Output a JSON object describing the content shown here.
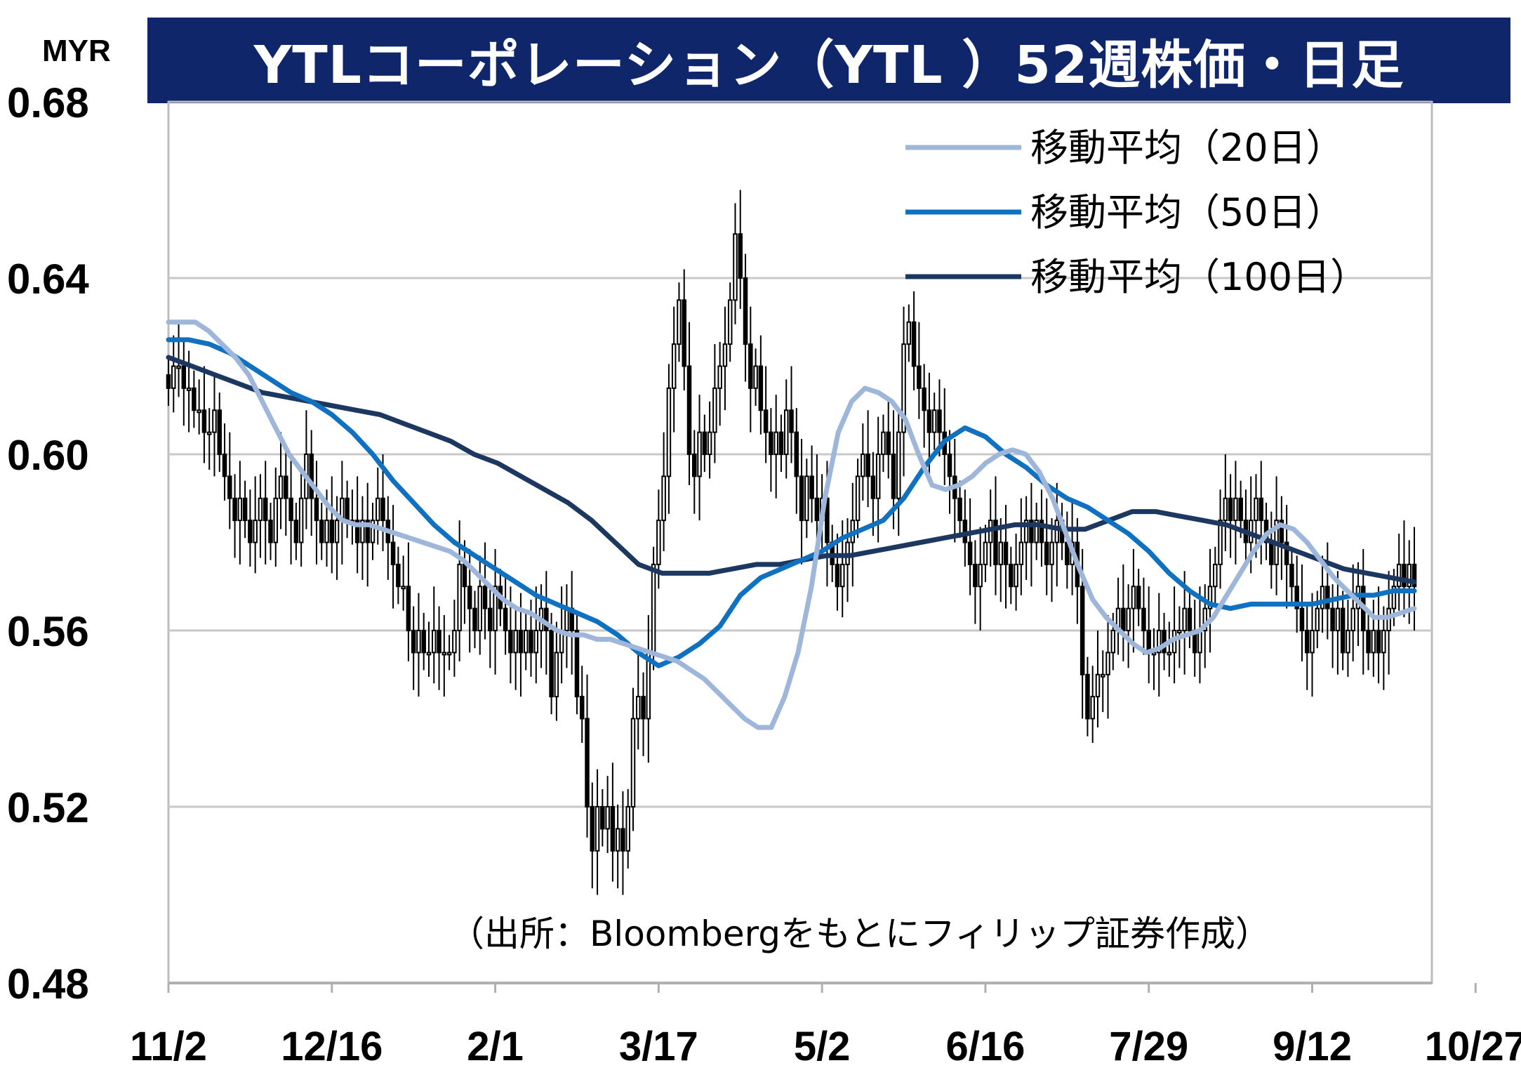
{
  "title": "YTLコーポレーション（YTL ）52週株価・日足",
  "unit": "MYR",
  "source": "（出所：Bloombergをもとにフィリップ証券作成）",
  "colors": {
    "title_bg": "#10266b",
    "ma20": "#9db6da",
    "ma50": "#1071c0",
    "ma100": "#1d3860",
    "candle": "#000000",
    "grid": "#c8c8c8"
  },
  "chart_data": {
    "type": "candlestick",
    "ylim": [
      0.48,
      0.68
    ],
    "yticks": [
      "0.68",
      "0.64",
      "0.60",
      "0.56",
      "0.52",
      "0.48"
    ],
    "ytick_values": [
      0.68,
      0.64,
      0.6,
      0.56,
      0.52,
      0.48
    ],
    "xticks": [
      {
        "label": "11/2",
        "pos": 0
      },
      {
        "label": "12/16",
        "pos": 32
      },
      {
        "label": "2/1",
        "pos": 64
      },
      {
        "label": "3/17",
        "pos": 96
      },
      {
        "label": "5/2",
        "pos": 128
      },
      {
        "label": "6/16",
        "pos": 160
      },
      {
        "label": "7/29",
        "pos": 192
      },
      {
        "label": "9/12",
        "pos": 224
      },
      {
        "label": "10/27",
        "pos": 256
      }
    ],
    "grid": true,
    "legend_position": "top-right",
    "legend": [
      {
        "name": "移動平均（20日）",
        "key": "ma20"
      },
      {
        "name": "移動平均（50日）",
        "key": "ma50"
      },
      {
        "name": "移動平均（100日）",
        "key": "ma100"
      }
    ],
    "closes": [
      0.615,
      0.62,
      0.62,
      0.615,
      0.615,
      0.61,
      0.61,
      0.605,
      0.605,
      0.61,
      0.6,
      0.595,
      0.59,
      0.585,
      0.59,
      0.585,
      0.58,
      0.585,
      0.59,
      0.585,
      0.58,
      0.59,
      0.595,
      0.59,
      0.585,
      0.58,
      0.59,
      0.6,
      0.59,
      0.585,
      0.58,
      0.585,
      0.58,
      0.585,
      0.59,
      0.585,
      0.585,
      0.58,
      0.585,
      0.58,
      0.585,
      0.59,
      0.585,
      0.58,
      0.575,
      0.57,
      0.57,
      0.56,
      0.555,
      0.56,
      0.555,
      0.555,
      0.56,
      0.555,
      0.555,
      0.555,
      0.56,
      0.575,
      0.57,
      0.565,
      0.56,
      0.57,
      0.565,
      0.56,
      0.57,
      0.565,
      0.56,
      0.555,
      0.56,
      0.555,
      0.56,
      0.555,
      0.56,
      0.565,
      0.56,
      0.545,
      0.555,
      0.56,
      0.565,
      0.56,
      0.545,
      0.54,
      0.52,
      0.51,
      0.52,
      0.515,
      0.52,
      0.51,
      0.515,
      0.51,
      0.52,
      0.54,
      0.545,
      0.54,
      0.555,
      0.575,
      0.585,
      0.595,
      0.615,
      0.625,
      0.635,
      0.62,
      0.6,
      0.595,
      0.605,
      0.6,
      0.605,
      0.615,
      0.62,
      0.625,
      0.635,
      0.65,
      0.64,
      0.625,
      0.615,
      0.62,
      0.61,
      0.605,
      0.6,
      0.605,
      0.6,
      0.61,
      0.605,
      0.595,
      0.585,
      0.595,
      0.59,
      0.585,
      0.59,
      0.58,
      0.575,
      0.57,
      0.575,
      0.58,
      0.585,
      0.595,
      0.6,
      0.595,
      0.59,
      0.6,
      0.605,
      0.6,
      0.59,
      0.605,
      0.625,
      0.63,
      0.62,
      0.615,
      0.61,
      0.605,
      0.61,
      0.605,
      0.6,
      0.595,
      0.59,
      0.585,
      0.58,
      0.575,
      0.57,
      0.575,
      0.58,
      0.585,
      0.575,
      0.58,
      0.575,
      0.57,
      0.575,
      0.58,
      0.585,
      0.58,
      0.585,
      0.58,
      0.575,
      0.58,
      0.585,
      0.58,
      0.575,
      0.58,
      0.57,
      0.55,
      0.54,
      0.545,
      0.55,
      0.55,
      0.555,
      0.56,
      0.565,
      0.56,
      0.565,
      0.57,
      0.565,
      0.56,
      0.555,
      0.555,
      0.56,
      0.555,
      0.555,
      0.56,
      0.56,
      0.565,
      0.56,
      0.555,
      0.56,
      0.565,
      0.57,
      0.575,
      0.585,
      0.59,
      0.585,
      0.59,
      0.585,
      0.58,
      0.585,
      0.59,
      0.585,
      0.58,
      0.575,
      0.585,
      0.58,
      0.575,
      0.57,
      0.565,
      0.56,
      0.555,
      0.56,
      0.565,
      0.57,
      0.565,
      0.56,
      0.565,
      0.555,
      0.56,
      0.565,
      0.57,
      0.56,
      0.555,
      0.56,
      0.555,
      0.56,
      0.565,
      0.57,
      0.575,
      0.57,
      0.575,
      0.57
    ],
    "ma20": [
      0.63,
      0.63,
      0.63,
      0.628,
      0.625,
      0.622,
      0.618,
      0.612,
      0.606,
      0.6,
      0.596,
      0.592,
      0.588,
      0.585,
      0.584,
      0.584,
      0.583,
      0.582,
      0.581,
      0.58,
      0.579,
      0.578,
      0.576,
      0.573,
      0.57,
      0.567,
      0.565,
      0.564,
      0.562,
      0.56,
      0.559,
      0.559,
      0.558,
      0.558,
      0.557,
      0.556,
      0.555,
      0.554,
      0.553,
      0.551,
      0.549,
      0.546,
      0.543,
      0.54,
      0.538,
      0.538,
      0.545,
      0.555,
      0.57,
      0.59,
      0.605,
      0.612,
      0.615,
      0.614,
      0.612,
      0.608,
      0.6,
      0.593,
      0.592,
      0.593,
      0.595,
      0.598,
      0.6,
      0.601,
      0.6,
      0.596,
      0.59,
      0.582,
      0.574,
      0.567,
      0.563,
      0.56,
      0.557,
      0.555,
      0.556,
      0.558,
      0.559,
      0.56,
      0.563,
      0.568,
      0.573,
      0.578,
      0.582,
      0.584,
      0.583,
      0.58,
      0.576,
      0.572,
      0.569,
      0.566,
      0.563,
      0.563,
      0.564,
      0.565
    ],
    "ma50": [
      0.626,
      0.626,
      0.625,
      0.623,
      0.62,
      0.617,
      0.614,
      0.612,
      0.609,
      0.605,
      0.6,
      0.594,
      0.589,
      0.584,
      0.58,
      0.577,
      0.574,
      0.571,
      0.568,
      0.566,
      0.564,
      0.562,
      0.559,
      0.555,
      0.552,
      0.554,
      0.557,
      0.561,
      0.568,
      0.572,
      0.574,
      0.576,
      0.578,
      0.581,
      0.583,
      0.585,
      0.59,
      0.597,
      0.603,
      0.606,
      0.604,
      0.6,
      0.597,
      0.593,
      0.59,
      0.588,
      0.585,
      0.582,
      0.578,
      0.573,
      0.569,
      0.566,
      0.565,
      0.566,
      0.566,
      0.566,
      0.566,
      0.567,
      0.568,
      0.568,
      0.569,
      0.569
    ],
    "ma100": [
      0.622,
      0.62,
      0.618,
      0.616,
      0.614,
      0.613,
      0.612,
      0.611,
      0.61,
      0.609,
      0.607,
      0.605,
      0.603,
      0.6,
      0.598,
      0.595,
      0.592,
      0.589,
      0.585,
      0.58,
      0.575,
      0.573,
      0.573,
      0.573,
      0.574,
      0.575,
      0.575,
      0.576,
      0.577,
      0.577,
      0.578,
      0.579,
      0.58,
      0.581,
      0.582,
      0.583,
      0.584,
      0.584,
      0.583,
      0.583,
      0.585,
      0.587,
      0.587,
      0.586,
      0.585,
      0.584,
      0.582,
      0.58,
      0.578,
      0.576,
      0.574,
      0.573,
      0.572,
      0.571
    ]
  }
}
